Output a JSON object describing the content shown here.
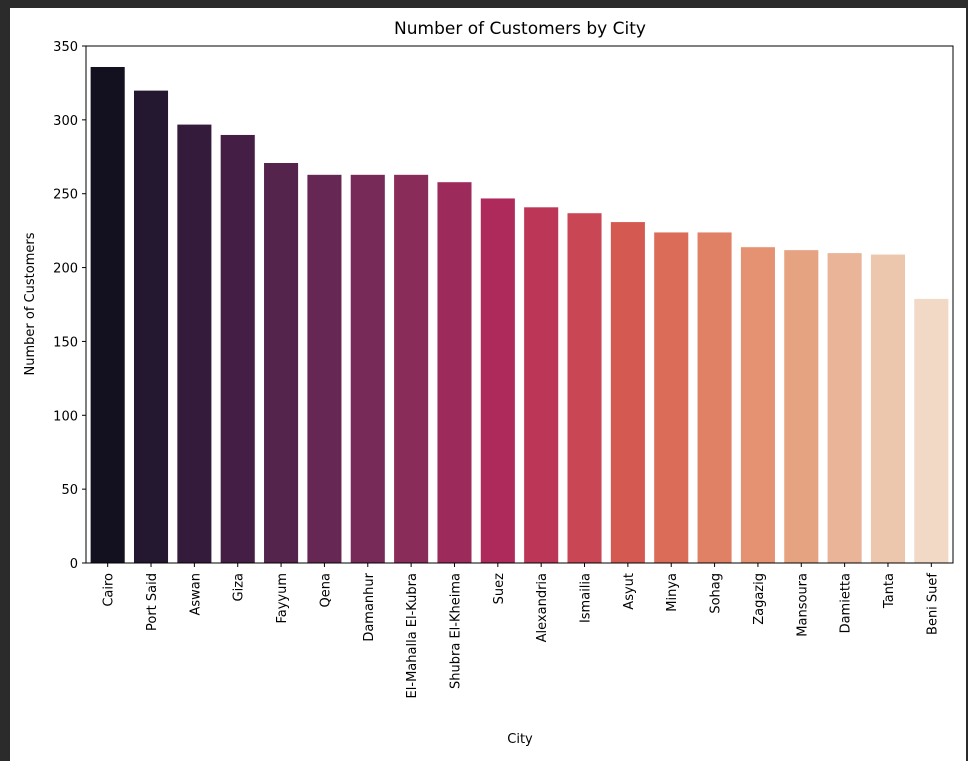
{
  "chart_data": {
    "type": "bar",
    "title": "Number of Customers by City",
    "xlabel": "City",
    "ylabel": "Number of Customers",
    "ylim": [
      0,
      350
    ],
    "yticks": [
      0,
      50,
      100,
      150,
      200,
      250,
      300,
      350
    ],
    "grid": false,
    "categories": [
      "Cairo",
      "Port Said",
      "Aswan",
      "Giza",
      "Fayyum",
      "Qena",
      "Damanhur",
      "El-Mahalla El-Kubra",
      "Shubra El-Kheima",
      "Suez",
      "Alexandria",
      "Ismailia",
      "Asyut",
      "Minya",
      "Sohag",
      "Zagazig",
      "Mansoura",
      "Damietta",
      "Tanta",
      "Beni Suef"
    ],
    "values": [
      336,
      320,
      297,
      290,
      271,
      263,
      263,
      263,
      258,
      247,
      241,
      237,
      231,
      224,
      224,
      214,
      212,
      210,
      209,
      179
    ],
    "colors": [
      "#13101f",
      "#241830",
      "#341b3b",
      "#441e44",
      "#55244c",
      "#672754",
      "#772a58",
      "#8a2c5a",
      "#9c2a5b",
      "#ad2a5a",
      "#bc3657",
      "#c94654",
      "#d45a51",
      "#db6d58",
      "#e08064",
      "#e49271",
      "#e6a381",
      "#e9b497",
      "#ecc6ad",
      "#f1d9c5"
    ]
  }
}
